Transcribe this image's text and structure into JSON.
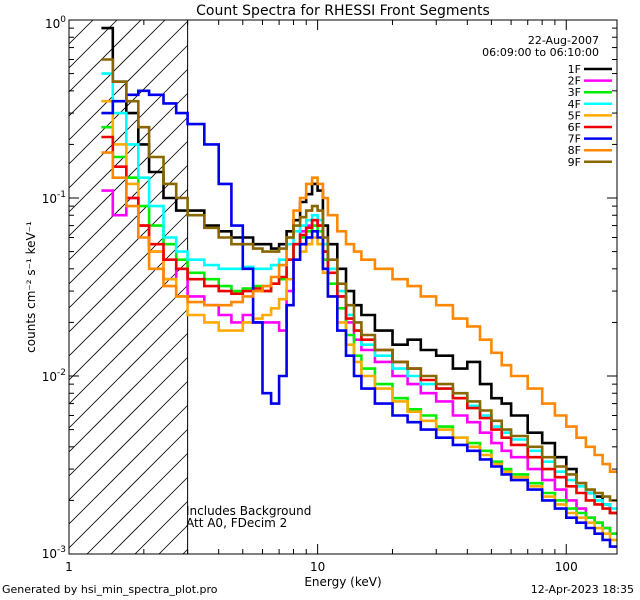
{
  "chart_data": {
    "type": "line",
    "title": "Count Spectra for RHESSI Front Segments",
    "xlabel": "Energy (keV)",
    "ylabel": "counts cm⁻² s⁻¹ keV⁻¹",
    "xscale": "log",
    "yscale": "log",
    "xlim": [
      1.0,
      160
    ],
    "ylim": [
      0.001,
      1.0
    ],
    "x_ticks": [
      {
        "value": 1,
        "label": "1"
      },
      {
        "value": 10,
        "label": "10"
      },
      {
        "value": 100,
        "label": "100"
      }
    ],
    "y_ticks": [
      {
        "value": 1,
        "label": "10⁰",
        "base": "10",
        "exp": "0"
      },
      {
        "value": 0.1,
        "label": "10⁻¹",
        "base": "10",
        "exp": "-1"
      },
      {
        "value": 0.01,
        "label": "10⁻²",
        "base": "10",
        "exp": "-2"
      },
      {
        "value": 0.001,
        "label": "10⁻³",
        "base": "10",
        "exp": "-3"
      }
    ],
    "date": "22-Aug-2007",
    "time_range": "06:09:00 to 06:10:00",
    "annotations": [
      "Includes Background",
      "Att A0, FDecim 2"
    ],
    "attenuator_cutoff_keV": 3.0,
    "legend_position": "top-right",
    "series": [
      {
        "name": "1F",
        "color": "#000000",
        "x": [
          1.35,
          1.5,
          1.7,
          1.9,
          2.1,
          2.4,
          2.7,
          3.0,
          3.5,
          4.0,
          4.5,
          5.0,
          5.5,
          6.0,
          6.5,
          7.0,
          7.5,
          8.0,
          8.5,
          9.0,
          9.5,
          10.0,
          10.5,
          11.0,
          12.0,
          13.0,
          14.0,
          15.0,
          17.0,
          20.0,
          23.0,
          26.0,
          30.0,
          35.0,
          40.0,
          45.0,
          50.0,
          55.0,
          60.0,
          70.0,
          80.0,
          90.0,
          100.0,
          110.0,
          120.0,
          130.0,
          140.0,
          150.0
        ],
        "values": [
          0.9,
          0.45,
          0.3,
          0.2,
          0.14,
          0.1,
          0.085,
          0.085,
          0.07,
          0.065,
          0.06,
          0.06,
          0.055,
          0.055,
          0.052,
          0.055,
          0.065,
          0.075,
          0.095,
          0.105,
          0.12,
          0.11,
          0.07,
          0.055,
          0.04,
          0.03,
          0.025,
          0.022,
          0.018,
          0.015,
          0.016,
          0.014,
          0.013,
          0.011,
          0.012,
          0.009,
          0.0075,
          0.007,
          0.006,
          0.0048,
          0.0042,
          0.0035,
          0.003,
          0.0025,
          0.0022,
          0.0021,
          0.0019,
          0.0017
        ]
      },
      {
        "name": "2F",
        "color": "#ff00ff",
        "x": [
          1.35,
          1.5,
          1.7,
          1.9,
          2.1,
          2.4,
          2.7,
          3.0,
          3.5,
          4.0,
          4.5,
          5.0,
          5.5,
          6.0,
          6.5,
          7.0,
          7.5,
          8.0,
          8.5,
          9.0,
          9.5,
          10.0,
          10.5,
          11.0,
          12.0,
          13.0,
          14.0,
          15.0,
          17.0,
          20.0,
          23.0,
          26.0,
          30.0,
          35.0,
          40.0,
          45.0,
          50.0,
          55.0,
          60.0,
          70.0,
          80.0,
          90.0,
          100.0,
          110.0,
          120.0,
          130.0,
          140.0,
          150.0
        ],
        "values": [
          0.11,
          0.08,
          0.1,
          0.07,
          0.05,
          0.035,
          0.04,
          0.028,
          0.025,
          0.022,
          0.02,
          0.022,
          0.02,
          0.02,
          0.02,
          0.018,
          0.03,
          0.055,
          0.065,
          0.07,
          0.075,
          0.07,
          0.05,
          0.04,
          0.028,
          0.02,
          0.016,
          0.014,
          0.012,
          0.01,
          0.009,
          0.008,
          0.0072,
          0.006,
          0.0055,
          0.0048,
          0.0042,
          0.0038,
          0.0035,
          0.003,
          0.0026,
          0.0023,
          0.002,
          0.0018,
          0.0016,
          0.0015,
          0.0014,
          0.0013
        ]
      },
      {
        "name": "3F",
        "color": "#00ee00",
        "x": [
          1.35,
          1.5,
          1.7,
          1.9,
          2.1,
          2.4,
          2.7,
          3.0,
          3.5,
          4.0,
          4.5,
          5.0,
          5.5,
          6.0,
          6.5,
          7.0,
          7.5,
          8.0,
          8.5,
          9.0,
          9.5,
          10.0,
          10.5,
          11.0,
          12.0,
          13.0,
          14.0,
          15.0,
          17.0,
          20.0,
          23.0,
          26.0,
          30.0,
          35.0,
          40.0,
          45.0,
          50.0,
          55.0,
          60.0,
          70.0,
          80.0,
          90.0,
          100.0,
          110.0,
          120.0,
          130.0,
          140.0,
          150.0
        ],
        "values": [
          0.25,
          0.17,
          0.13,
          0.09,
          0.07,
          0.055,
          0.045,
          0.038,
          0.035,
          0.032,
          0.03,
          0.031,
          0.032,
          0.03,
          0.033,
          0.035,
          0.045,
          0.055,
          0.06,
          0.065,
          0.07,
          0.065,
          0.045,
          0.033,
          0.024,
          0.017,
          0.013,
          0.011,
          0.009,
          0.0075,
          0.0065,
          0.006,
          0.0052,
          0.0045,
          0.0042,
          0.0038,
          0.0033,
          0.003,
          0.0028,
          0.0025,
          0.0022,
          0.002,
          0.0018,
          0.0017,
          0.0016,
          0.0015,
          0.0014,
          0.0013
        ]
      },
      {
        "name": "4F",
        "color": "#00ffff",
        "x": [
          1.35,
          1.5,
          1.7,
          1.9,
          2.1,
          2.4,
          2.7,
          3.0,
          3.5,
          4.0,
          4.5,
          5.0,
          5.5,
          6.0,
          6.5,
          7.0,
          7.5,
          8.0,
          8.5,
          9.0,
          9.5,
          10.0,
          10.5,
          11.0,
          12.0,
          13.0,
          14.0,
          15.0,
          17.0,
          20.0,
          23.0,
          26.0,
          30.0,
          35.0,
          40.0,
          45.0,
          50.0,
          55.0,
          60.0,
          70.0,
          80.0,
          90.0,
          100.0,
          110.0,
          120.0,
          130.0,
          140.0,
          150.0
        ],
        "values": [
          0.5,
          0.3,
          0.2,
          0.13,
          0.09,
          0.06,
          0.05,
          0.045,
          0.042,
          0.04,
          0.04,
          0.041,
          0.04,
          0.04,
          0.042,
          0.045,
          0.055,
          0.065,
          0.07,
          0.075,
          0.08,
          0.075,
          0.055,
          0.04,
          0.03,
          0.022,
          0.018,
          0.015,
          0.013,
          0.011,
          0.01,
          0.009,
          0.0085,
          0.0075,
          0.0068,
          0.006,
          0.0052,
          0.0048,
          0.0044,
          0.0038,
          0.0033,
          0.0029,
          0.0026,
          0.0024,
          0.0022,
          0.002,
          0.0019,
          0.0018
        ]
      },
      {
        "name": "5F",
        "color": "#ffaa00",
        "x": [
          1.35,
          1.5,
          1.7,
          1.9,
          2.1,
          2.4,
          2.7,
          3.0,
          3.5,
          4.0,
          4.5,
          5.0,
          5.5,
          6.0,
          6.5,
          7.0,
          7.5,
          8.0,
          8.5,
          9.0,
          9.5,
          10.0,
          10.5,
          11.0,
          12.0,
          13.0,
          14.0,
          15.0,
          17.0,
          20.0,
          23.0,
          26.0,
          30.0,
          35.0,
          40.0,
          45.0,
          50.0,
          55.0,
          60.0,
          70.0,
          80.0,
          90.0,
          100.0,
          110.0,
          120.0,
          130.0,
          140.0,
          150.0
        ],
        "values": [
          0.35,
          0.2,
          0.12,
          0.07,
          0.05,
          0.035,
          0.028,
          0.022,
          0.02,
          0.018,
          0.018,
          0.02,
          0.021,
          0.022,
          0.024,
          0.027,
          0.035,
          0.045,
          0.05,
          0.055,
          0.06,
          0.055,
          0.038,
          0.028,
          0.02,
          0.015,
          0.012,
          0.01,
          0.0085,
          0.0072,
          0.0063,
          0.0056,
          0.005,
          0.0045,
          0.004,
          0.0036,
          0.0032,
          0.0029,
          0.0027,
          0.0024,
          0.0021,
          0.0019,
          0.0017,
          0.0016,
          0.0015,
          0.0014,
          0.0013,
          0.0012
        ]
      },
      {
        "name": "6F",
        "color": "#ee0000",
        "x": [
          1.35,
          1.5,
          1.7,
          1.9,
          2.1,
          2.4,
          2.7,
          3.0,
          3.5,
          4.0,
          4.5,
          5.0,
          5.5,
          6.0,
          6.5,
          7.0,
          7.5,
          8.0,
          8.5,
          9.0,
          9.5,
          10.0,
          10.5,
          11.0,
          12.0,
          13.0,
          14.0,
          15.0,
          17.0,
          20.0,
          23.0,
          26.0,
          30.0,
          35.0,
          40.0,
          45.0,
          50.0,
          55.0,
          60.0,
          70.0,
          80.0,
          90.0,
          100.0,
          110.0,
          120.0,
          130.0,
          140.0,
          150.0
        ],
        "values": [
          0.22,
          0.15,
          0.1,
          0.07,
          0.055,
          0.045,
          0.04,
          0.035,
          0.032,
          0.03,
          0.029,
          0.03,
          0.031,
          0.03,
          0.033,
          0.036,
          0.045,
          0.055,
          0.062,
          0.068,
          0.075,
          0.07,
          0.05,
          0.038,
          0.028,
          0.021,
          0.018,
          0.016,
          0.014,
          0.012,
          0.011,
          0.0095,
          0.0085,
          0.0075,
          0.0066,
          0.0058,
          0.005,
          0.0045,
          0.0041,
          0.0035,
          0.003,
          0.0027,
          0.0024,
          0.0022,
          0.002,
          0.0019,
          0.0018,
          0.0017
        ]
      },
      {
        "name": "7F",
        "color": "#0000ee",
        "x": [
          1.35,
          1.5,
          1.7,
          1.9,
          2.1,
          2.4,
          2.7,
          3.0,
          3.5,
          4.0,
          4.5,
          5.0,
          5.5,
          6.0,
          6.5,
          7.0,
          7.5,
          8.0,
          8.5,
          9.0,
          9.5,
          10.0,
          10.5,
          11.0,
          12.0,
          13.0,
          14.0,
          15.0,
          17.0,
          20.0,
          23.0,
          26.0,
          30.0,
          35.0,
          40.0,
          45.0,
          50.0,
          55.0,
          60.0,
          70.0,
          80.0,
          90.0,
          100.0,
          110.0,
          120.0,
          130.0,
          140.0,
          150.0
        ],
        "values": [
          0.3,
          0.35,
          0.38,
          0.4,
          0.38,
          0.34,
          0.3,
          0.26,
          0.2,
          0.12,
          0.07,
          0.04,
          0.02,
          0.008,
          0.007,
          0.01,
          0.025,
          0.045,
          0.055,
          0.06,
          0.065,
          0.06,
          0.04,
          0.028,
          0.018,
          0.013,
          0.01,
          0.0085,
          0.007,
          0.006,
          0.0055,
          0.005,
          0.0045,
          0.0041,
          0.0038,
          0.0034,
          0.0031,
          0.0028,
          0.0026,
          0.0023,
          0.002,
          0.0018,
          0.0016,
          0.0015,
          0.0014,
          0.0013,
          0.0012,
          0.0011
        ]
      },
      {
        "name": "8F",
        "color": "#ff8800",
        "x": [
          1.35,
          1.5,
          1.7,
          1.9,
          2.1,
          2.4,
          2.7,
          3.0,
          3.5,
          4.0,
          4.5,
          5.0,
          5.5,
          6.0,
          6.5,
          7.0,
          7.5,
          8.0,
          8.5,
          9.0,
          9.5,
          10.0,
          10.5,
          11.0,
          12.0,
          13.0,
          14.0,
          15.0,
          17.0,
          20.0,
          23.0,
          26.0,
          30.0,
          35.0,
          40.0,
          45.0,
          50.0,
          55.0,
          60.0,
          70.0,
          80.0,
          90.0,
          100.0,
          110.0,
          120.0,
          130.0,
          140.0,
          150.0
        ],
        "values": [
          0.18,
          0.13,
          0.09,
          0.06,
          0.04,
          0.032,
          0.028,
          0.026,
          0.025,
          0.025,
          0.026,
          0.028,
          0.03,
          0.032,
          0.036,
          0.042,
          0.06,
          0.085,
          0.1,
          0.12,
          0.13,
          0.12,
          0.1,
          0.08,
          0.065,
          0.055,
          0.05,
          0.045,
          0.04,
          0.035,
          0.032,
          0.028,
          0.025,
          0.021,
          0.019,
          0.016,
          0.0135,
          0.0115,
          0.01,
          0.0085,
          0.007,
          0.006,
          0.0052,
          0.0045,
          0.004,
          0.0036,
          0.0032,
          0.0029
        ]
      },
      {
        "name": "9F",
        "color": "#886600",
        "x": [
          1.35,
          1.5,
          1.7,
          1.9,
          2.1,
          2.4,
          2.7,
          3.0,
          3.5,
          4.0,
          4.5,
          5.0,
          5.5,
          6.0,
          6.5,
          7.0,
          7.5,
          8.0,
          8.5,
          9.0,
          9.5,
          10.0,
          10.5,
          11.0,
          12.0,
          13.0,
          14.0,
          15.0,
          17.0,
          20.0,
          23.0,
          26.0,
          30.0,
          35.0,
          40.0,
          45.0,
          50.0,
          55.0,
          60.0,
          70.0,
          80.0,
          90.0,
          100.0,
          110.0,
          120.0,
          130.0,
          140.0,
          150.0
        ],
        "values": [
          0.6,
          0.45,
          0.35,
          0.25,
          0.17,
          0.12,
          0.1,
          0.08,
          0.068,
          0.06,
          0.055,
          0.055,
          0.052,
          0.05,
          0.05,
          0.052,
          0.06,
          0.07,
          0.078,
          0.085,
          0.09,
          0.085,
          0.06,
          0.045,
          0.033,
          0.025,
          0.02,
          0.017,
          0.014,
          0.012,
          0.011,
          0.01,
          0.009,
          0.008,
          0.0072,
          0.0064,
          0.0056,
          0.005,
          0.0046,
          0.004,
          0.0035,
          0.0031,
          0.0028,
          0.0025,
          0.0023,
          0.0022,
          0.0021,
          0.002
        ]
      }
    ]
  },
  "footer": {
    "left": "Generated by hsi_min_spectra_plot.pro",
    "right": "12-Apr-2023 18:35"
  }
}
